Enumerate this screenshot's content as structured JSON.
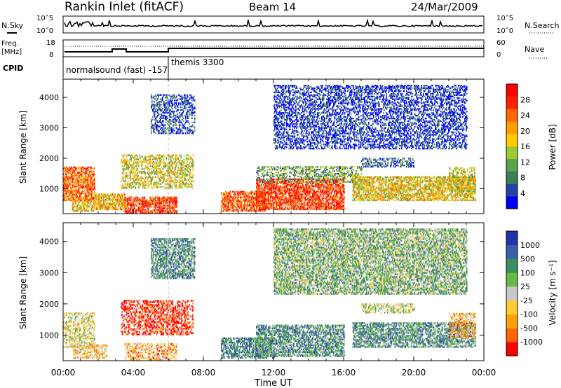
{
  "header": {
    "station": "Rankin Inlet (fitACF)",
    "beam": "Beam 14",
    "date": "24/Mar/2009"
  },
  "noise_panel": {
    "left_label": "N.Sky",
    "left_ticks": [
      "10^5",
      "10^0"
    ],
    "right_ticks": [
      "10^5",
      "10^0"
    ],
    "right_label": "N.Search",
    "sky_line_color": "#000000",
    "search_line_style": "dotted"
  },
  "freq_panel": {
    "left_label_top": "Freq.",
    "left_label_bottom": "[MHz]",
    "left_ticks": [
      "18",
      "8"
    ],
    "right_ticks": [
      "60",
      "0"
    ],
    "right_label": "Nave",
    "nave_line_style": "dotted"
  },
  "cpid_panel": {
    "label": "CPID",
    "modes": [
      {
        "text": "normalsound (fast) -157",
        "start_hour": 0
      },
      {
        "text": "themis 3300",
        "start_hour": 6
      }
    ]
  },
  "chart_data": [
    {
      "type": "heatmap",
      "quantity": "Power",
      "ylabel": "Slant Range [km]",
      "xlabel": "Time UT",
      "x_range_hours": [
        0,
        24
      ],
      "y_range_km": [
        180,
        4600
      ],
      "y_ticks": [
        "1000",
        "2000",
        "3000",
        "4000"
      ],
      "x_ticks": [
        "00:00",
        "04:00",
        "08:00",
        "12:00",
        "16:00",
        "20:00",
        "00:00"
      ],
      "colorbar": {
        "label": "Power [dB]",
        "ticks": [
          "4",
          "8",
          "12",
          "16",
          "20",
          "24",
          "28"
        ],
        "colors": [
          "#0000ff",
          "#2244aa",
          "#3a7f5a",
          "#5fa04a",
          "#99cc33",
          "#ffcc00",
          "#ffa000",
          "#ff6600",
          "#ff2200",
          "#ff0000"
        ]
      },
      "scatter_regions": [
        {
          "t": [
            0.0,
            1.8
          ],
          "r": [
            600,
            1700
          ],
          "level": 0.75
        },
        {
          "t": [
            0.5,
            1.8
          ],
          "r": [
            250,
            600
          ],
          "level": 0.55
        },
        {
          "t": [
            1.8,
            3.5
          ],
          "r": [
            300,
            800
          ],
          "level": 0.6
        },
        {
          "t": [
            3.3,
            7.4
          ],
          "r": [
            1000,
            2100
          ],
          "level": 0.5
        },
        {
          "t": [
            3.5,
            6.5
          ],
          "r": [
            200,
            700
          ],
          "level": 0.85
        },
        {
          "t": [
            9.0,
            11.5
          ],
          "r": [
            250,
            900
          ],
          "level": 0.8
        },
        {
          "t": [
            11.0,
            16.0
          ],
          "r": [
            300,
            1300
          ],
          "level": 0.85
        },
        {
          "t": [
            11.0,
            17.0
          ],
          "r": [
            1200,
            1700
          ],
          "level": 0.35
        },
        {
          "t": [
            16.5,
            23.5
          ],
          "r": [
            600,
            1400
          ],
          "level": 0.55
        },
        {
          "t": [
            17.0,
            20.0
          ],
          "r": [
            1700,
            2000
          ],
          "level": 0.2
        },
        {
          "t": [
            22.0,
            23.5
          ],
          "r": [
            900,
            1700
          ],
          "level": 0.5
        },
        {
          "t": [
            5.0,
            7.5
          ],
          "r": [
            2800,
            4100
          ],
          "level": 0.15
        },
        {
          "t": [
            12.0,
            23.0
          ],
          "r": [
            2300,
            4400
          ],
          "level": 0.1
        }
      ]
    },
    {
      "type": "heatmap",
      "quantity": "Velocity",
      "ylabel": "Slant Range [km]",
      "xlabel": "Time UT",
      "x_range_hours": [
        0,
        24
      ],
      "y_range_km": [
        180,
        4600
      ],
      "y_ticks": [
        "1000",
        "2000",
        "3000",
        "4000"
      ],
      "x_ticks": [
        "00:00",
        "04:00",
        "08:00",
        "12:00",
        "16:00",
        "20:00",
        "00:00"
      ],
      "colorbar": {
        "label": "Velocity [m s⁻¹]",
        "ticks": [
          "1000",
          "500",
          "100",
          "25",
          "-25",
          "-100",
          "-500",
          "-1000"
        ],
        "colors": [
          "#2233aa",
          "#3a5faa",
          "#3a8f5a",
          "#66bb44",
          "#c8c8c8",
          "#ffcc33",
          "#ffa000",
          "#ff6600",
          "#ff0000"
        ]
      },
      "scatter_regions": [
        {
          "t": [
            0.0,
            1.8
          ],
          "r": [
            600,
            1700
          ],
          "level": 0.45
        },
        {
          "t": [
            0.5,
            2.5
          ],
          "r": [
            250,
            700
          ],
          "level": 0.35
        },
        {
          "t": [
            3.3,
            7.4
          ],
          "r": [
            1000,
            2100
          ],
          "level": 0.05
        },
        {
          "t": [
            3.5,
            6.5
          ],
          "r": [
            200,
            700
          ],
          "level": 0.3
        },
        {
          "t": [
            9.0,
            12.0
          ],
          "r": [
            250,
            900
          ],
          "level": 0.75
        },
        {
          "t": [
            11.0,
            16.0
          ],
          "r": [
            300,
            1300
          ],
          "level": 0.7
        },
        {
          "t": [
            16.5,
            23.5
          ],
          "r": [
            600,
            1400
          ],
          "level": 0.7
        },
        {
          "t": [
            17.0,
            20.0
          ],
          "r": [
            1700,
            2000
          ],
          "level": 0.5
        },
        {
          "t": [
            22.0,
            23.5
          ],
          "r": [
            900,
            1700
          ],
          "level": 0.3
        },
        {
          "t": [
            5.0,
            7.5
          ],
          "r": [
            2800,
            4100
          ],
          "level": 0.7
        },
        {
          "t": [
            12.0,
            23.0
          ],
          "r": [
            2300,
            4400
          ],
          "level": 0.6
        }
      ]
    }
  ]
}
